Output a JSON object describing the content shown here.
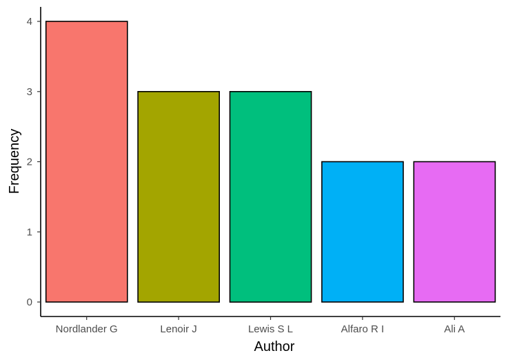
{
  "chart_data": {
    "type": "bar",
    "categories": [
      "Nordlander G",
      "Lenoir J",
      "Lewis S L",
      "Alfaro R I",
      "Ali A"
    ],
    "values": [
      4,
      3,
      3,
      2,
      2
    ],
    "colors": [
      "#F8766D",
      "#A3A500",
      "#00BF7D",
      "#00B0F6",
      "#E76BF3"
    ],
    "xlabel": "Author",
    "ylabel": "Frequency",
    "ylim": [
      0,
      4
    ],
    "yticks": [
      "0",
      "1",
      "2",
      "3",
      "4"
    ],
    "grid": false,
    "legend": "none"
  }
}
